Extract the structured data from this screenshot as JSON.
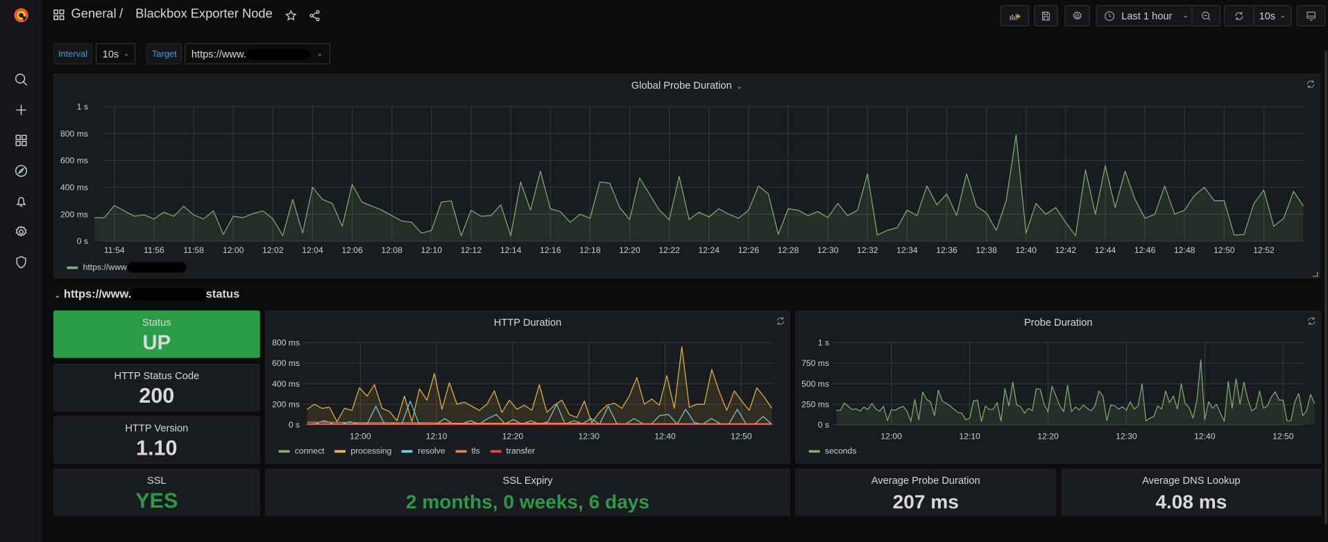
{
  "topbar": {
    "breadcrumb_folder": "General",
    "breadcrumb_sep": "/",
    "dashboard_title": "Blackbox Exporter Node",
    "time_range": "Last 1 hour",
    "refresh_interval": "10s"
  },
  "variables": {
    "interval_label": "Interval",
    "interval_value": "10s",
    "target_label": "Target",
    "target_value": "https://www."
  },
  "row": {
    "prefix": "https://www.",
    "suffix": "status"
  },
  "stats": {
    "status": {
      "title": "Status",
      "value": "UP"
    },
    "http_status_code": {
      "title": "HTTP Status Code",
      "value": "200"
    },
    "http_version": {
      "title": "HTTP Version",
      "value": "1.10"
    },
    "ssl": {
      "title": "SSL",
      "value": "YES"
    },
    "ssl_expiry": {
      "title": "SSL Expiry",
      "value": "2 months, 0 weeks, 6 days"
    },
    "avg_probe": {
      "title": "Average Probe Duration",
      "value": "207 ms"
    },
    "avg_dns": {
      "title": "Average DNS Lookup",
      "value": "4.08 ms"
    }
  },
  "colors": {
    "ok": "#299c46",
    "green": "#7eb26d",
    "yellow": "#eab839",
    "cyan": "#6ed0e0",
    "orange": "#ef843c",
    "red": "#e24d42"
  },
  "chart_data": [
    {
      "id": "global",
      "type": "line",
      "title": "Global Probe Duration",
      "x_range": [
        "11:53",
        "12:54"
      ],
      "xticks": [
        "11:54",
        "11:56",
        "11:58",
        "12:00",
        "12:02",
        "12:04",
        "12:06",
        "12:08",
        "12:10",
        "12:12",
        "12:14",
        "12:16",
        "12:18",
        "12:20",
        "12:22",
        "12:24",
        "12:26",
        "12:28",
        "12:30",
        "12:32",
        "12:34",
        "12:36",
        "12:38",
        "12:40",
        "12:42",
        "12:44",
        "12:46",
        "12:48",
        "12:50",
        "12:52"
      ],
      "ylim": [
        0,
        1000
      ],
      "yticks": [
        {
          "v": 0,
          "label": "0 s"
        },
        {
          "v": 200,
          "label": "200 ms"
        },
        {
          "v": 400,
          "label": "400 ms"
        },
        {
          "v": 600,
          "label": "600 ms"
        },
        {
          "v": 800,
          "label": "800 ms"
        },
        {
          "v": 1000,
          "label": "1 s"
        }
      ],
      "legend": "bottom-left",
      "series": [
        {
          "name": "https://www",
          "color": "#7eb26d",
          "fill": true,
          "values": [
            175,
            175,
            265,
            225,
            185,
            195,
            165,
            215,
            185,
            260,
            195,
            165,
            225,
            50,
            185,
            175,
            205,
            225,
            165,
            40,
            310,
            60,
            400,
            310,
            280,
            110,
            420,
            290,
            260,
            230,
            190,
            150,
            140,
            60,
            80,
            290,
            300,
            40,
            230,
            185,
            190,
            270,
            40,
            440,
            230,
            520,
            240,
            220,
            140,
            200,
            170,
            440,
            430,
            250,
            160,
            470,
            350,
            230,
            160,
            480,
            160,
            215,
            180,
            240,
            200,
            170,
            230,
            410,
            350,
            50,
            240,
            230,
            190,
            220,
            175,
            280,
            190,
            230,
            500,
            45,
            80,
            100,
            230,
            190,
            410,
            270,
            350,
            190,
            500,
            260,
            210,
            80,
            300,
            790,
            60,
            280,
            200,
            250,
            140,
            40,
            530,
            200,
            560,
            250,
            520,
            310,
            170,
            200,
            410,
            200,
            230,
            340,
            400,
            300,
            300,
            45,
            50,
            280,
            380,
            110,
            170,
            370,
            260
          ]
        }
      ]
    },
    {
      "id": "http",
      "type": "line",
      "title": "HTTP Duration",
      "x_range": [
        "11:53",
        "12:54"
      ],
      "xticks": [
        "12:00",
        "12:10",
        "12:20",
        "12:30",
        "12:40",
        "12:50"
      ],
      "ylim": [
        0,
        800
      ],
      "yticks": [
        {
          "v": 0,
          "label": "0 s"
        },
        {
          "v": 200,
          "label": "200 ms"
        },
        {
          "v": 400,
          "label": "400 ms"
        },
        {
          "v": 600,
          "label": "600 ms"
        },
        {
          "v": 800,
          "label": "800 ms"
        }
      ],
      "legend": "bottom-left",
      "series": [
        {
          "name": "connect",
          "color": "#7eb26d",
          "fill": false,
          "values": [
            8,
            8,
            8,
            8,
            8,
            8
          ]
        },
        {
          "name": "processing",
          "color": "#eab839",
          "fill": true,
          "values": [
            150,
            200,
            160,
            170,
            30,
            160,
            140,
            360,
            280,
            390,
            160,
            130,
            40,
            280,
            30,
            350,
            240,
            500,
            150,
            410,
            200,
            220,
            180,
            140,
            200,
            330,
            120,
            240,
            150,
            190,
            140,
            390,
            120,
            190,
            240,
            100,
            70,
            230,
            20,
            120,
            190,
            210,
            160,
            280,
            460,
            200,
            250,
            190,
            480,
            160,
            760,
            170,
            200,
            200,
            540,
            320,
            140,
            330,
            230,
            140,
            360,
            270,
            160
          ]
        },
        {
          "name": "resolve",
          "color": "#6ed0e0",
          "fill": false,
          "values": [
            5,
            10,
            40,
            10,
            5,
            30,
            5,
            10,
            180,
            5,
            10,
            5,
            230,
            10,
            5,
            5,
            60,
            5,
            10,
            40,
            5,
            60,
            100,
            10,
            50,
            5,
            40,
            5,
            30,
            200,
            5,
            40,
            10,
            60,
            5,
            180,
            10,
            5,
            60,
            10,
            5,
            90,
            100,
            5,
            150,
            20,
            5,
            60,
            10,
            5,
            150,
            10,
            5,
            80,
            5
          ]
        },
        {
          "name": "tls",
          "color": "#ef843c",
          "fill": false,
          "values": [
            25,
            25,
            20,
            20,
            20,
            20,
            15,
            15,
            15,
            15,
            15,
            15,
            10,
            10,
            10,
            10,
            10,
            10,
            10,
            10
          ]
        },
        {
          "name": "transfer",
          "color": "#e24d42",
          "fill": false,
          "values": [
            2,
            2,
            2,
            2,
            2,
            2
          ]
        }
      ]
    },
    {
      "id": "probe",
      "type": "line",
      "title": "Probe Duration",
      "x_range": [
        "11:53",
        "12:54"
      ],
      "xticks": [
        "12:00",
        "12:10",
        "12:20",
        "12:30",
        "12:40",
        "12:50"
      ],
      "ylim": [
        0,
        1000
      ],
      "yticks": [
        {
          "v": 0,
          "label": "0 s"
        },
        {
          "v": 250,
          "label": "250 ms"
        },
        {
          "v": 500,
          "label": "500 ms"
        },
        {
          "v": 750,
          "label": "750 ms"
        },
        {
          "v": 1000,
          "label": "1 s"
        }
      ],
      "legend": "bottom-left",
      "series": [
        {
          "name": "seconds",
          "color": "#7eb26d",
          "fill": true,
          "values": [
            175,
            175,
            265,
            225,
            185,
            195,
            165,
            215,
            185,
            260,
            195,
            165,
            225,
            50,
            185,
            175,
            205,
            225,
            165,
            40,
            310,
            60,
            400,
            310,
            280,
            110,
            420,
            290,
            260,
            230,
            190,
            150,
            140,
            60,
            80,
            290,
            300,
            40,
            230,
            185,
            190,
            270,
            40,
            440,
            230,
            520,
            240,
            220,
            140,
            200,
            170,
            440,
            430,
            250,
            160,
            470,
            350,
            230,
            160,
            480,
            160,
            215,
            180,
            240,
            200,
            170,
            230,
            410,
            350,
            50,
            240,
            230,
            190,
            220,
            175,
            280,
            190,
            230,
            500,
            45,
            80,
            100,
            230,
            190,
            410,
            270,
            350,
            190,
            500,
            260,
            210,
            80,
            300,
            790,
            60,
            280,
            200,
            250,
            140,
            40,
            530,
            200,
            560,
            250,
            520,
            310,
            170,
            200,
            410,
            200,
            230,
            340,
            400,
            300,
            300,
            45,
            50,
            280,
            380,
            110,
            170,
            370,
            260
          ]
        }
      ]
    }
  ]
}
